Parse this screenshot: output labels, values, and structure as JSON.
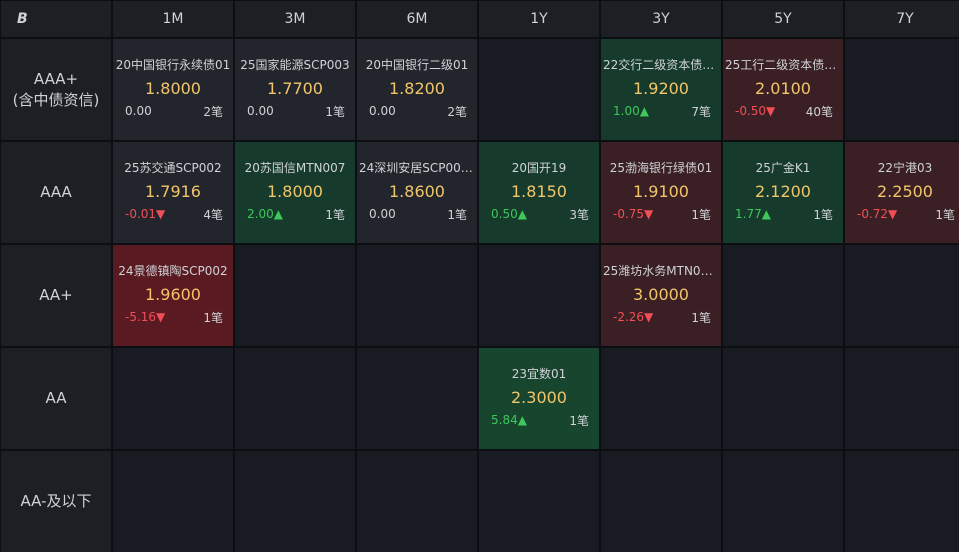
{
  "corner_label": "B",
  "columns": [
    "1M",
    "3M",
    "6M",
    "1Y",
    "3Y",
    "5Y",
    "7Y"
  ],
  "rows": [
    {
      "label": "AAA+\n(含中债资信)",
      "cells": [
        {
          "name": "20中国银行永续债01",
          "rate": "1.8000",
          "change": "0.00",
          "dir": "flat",
          "count": "2笔",
          "bg": "grey"
        },
        {
          "name": "25国家能源SCP003",
          "rate": "1.7700",
          "change": "0.00",
          "dir": "flat",
          "count": "1笔",
          "bg": "grey"
        },
        {
          "name": "20中国银行二级01",
          "rate": "1.8200",
          "change": "0.00",
          "dir": "flat",
          "count": "2笔",
          "bg": "grey"
        },
        null,
        {
          "name": "22交行二级资本债0...",
          "rate": "1.9200",
          "change": "1.00▲",
          "dir": "up",
          "count": "7笔",
          "bg": "green"
        },
        {
          "name": "25工行二级资本债0...",
          "rate": "2.0100",
          "change": "-0.50▼",
          "dir": "down",
          "count": "40笔",
          "bg": "darkred"
        },
        null
      ]
    },
    {
      "label": "AAA",
      "cells": [
        {
          "name": "25苏交通SCP002",
          "rate": "1.7916",
          "change": "-0.01▼",
          "dir": "down",
          "count": "4笔",
          "bg": "grey"
        },
        {
          "name": "20苏国信MTN007",
          "rate": "1.8000",
          "change": "2.00▲",
          "dir": "up",
          "count": "1笔",
          "bg": "green"
        },
        {
          "name": "24深圳安居SCP001...",
          "rate": "1.8600",
          "change": "0.00",
          "dir": "flat",
          "count": "1笔",
          "bg": "grey"
        },
        {
          "name": "20国开19",
          "rate": "1.8150",
          "change": "0.50▲",
          "dir": "up",
          "count": "3笔",
          "bg": "green"
        },
        {
          "name": "25渤海银行绿债01",
          "rate": "1.9100",
          "change": "-0.75▼",
          "dir": "down",
          "count": "1笔",
          "bg": "darkred"
        },
        {
          "name": "25广金K1",
          "rate": "2.1200",
          "change": "1.77▲",
          "dir": "up",
          "count": "1笔",
          "bg": "green"
        },
        {
          "name": "22宁港03",
          "rate": "2.2500",
          "change": "-0.72▼",
          "dir": "down",
          "count": "1笔",
          "bg": "darkred"
        }
      ]
    },
    {
      "label": "AA+",
      "cells": [
        {
          "name": "24景德镇陶SCP002",
          "rate": "1.9600",
          "change": "-5.16▼",
          "dir": "down",
          "count": "1笔",
          "bg": "red"
        },
        null,
        null,
        null,
        {
          "name": "25潍坊水务MTN00...",
          "rate": "3.0000",
          "change": "-2.26▼",
          "dir": "down",
          "count": "1笔",
          "bg": "darkred"
        },
        null,
        null
      ]
    },
    {
      "label": "AA",
      "cells": [
        null,
        null,
        null,
        {
          "name": "23宜数01",
          "rate": "2.3000",
          "change": "5.84▲",
          "dir": "up",
          "count": "1笔",
          "bg": "green2"
        },
        null,
        null,
        null
      ]
    },
    {
      "label": "AA-及以下",
      "cells": [
        null,
        null,
        null,
        null,
        null,
        null,
        null
      ]
    }
  ]
}
